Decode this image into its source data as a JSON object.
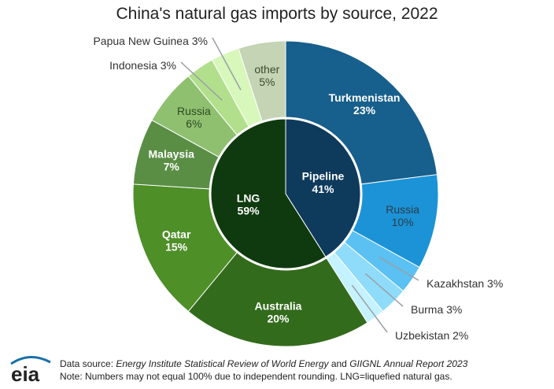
{
  "chart_data": {
    "type": "pie",
    "title": "China's natural gas imports by source, 2022",
    "inner": [
      {
        "label": "Pipeline",
        "value": 41,
        "display": "41%",
        "color": "#0e3a5c"
      },
      {
        "label": "LNG",
        "value": 59,
        "display": "59%",
        "color": "#0f3a0f"
      }
    ],
    "outer": [
      {
        "label": "Turkmenistan",
        "value": 23,
        "display": "23%",
        "color": "#175f8c",
        "group": "Pipeline"
      },
      {
        "label": "Russia",
        "value": 10,
        "display": "10%",
        "color": "#1c93d6",
        "group": "Pipeline"
      },
      {
        "label": "Kazakhstan",
        "value": 3,
        "display": "3%",
        "color": "#5bc0f2",
        "group": "Pipeline"
      },
      {
        "label": "Burma",
        "value": 3,
        "display": "3%",
        "color": "#8fdbfa",
        "group": "Pipeline"
      },
      {
        "label": "Uzbekistan",
        "value": 2,
        "display": "2%",
        "color": "#c4f2ff",
        "group": "Pipeline"
      },
      {
        "label": "Australia",
        "value": 20,
        "display": "20%",
        "color": "#336b1c",
        "group": "LNG"
      },
      {
        "label": "Qatar",
        "value": 15,
        "display": "15%",
        "color": "#4e8f28",
        "group": "LNG"
      },
      {
        "label": "Malaysia",
        "value": 7,
        "display": "7%",
        "color": "#5a8e45",
        "group": "LNG"
      },
      {
        "label": "Russia",
        "value": 6,
        "display": "6%",
        "color": "#8ec070",
        "group": "LNG"
      },
      {
        "label": "Indonesia",
        "value": 3,
        "display": "3%",
        "color": "#b2df8c",
        "group": "LNG"
      },
      {
        "label": "Papua New Guinea",
        "value": 3,
        "display": "3%",
        "color": "#d7f7bb",
        "group": "LNG"
      },
      {
        "label": "other",
        "value": 5,
        "display": "5%",
        "color": "#c4d4b4",
        "group": "LNG"
      }
    ]
  },
  "footer": {
    "logo_text": "eia",
    "source_prefix": "Data source: ",
    "source_1": "Energy Institute Statistical Review of World Energy",
    "source_and": " and ",
    "source_2": "GIIGNL Annual Report 2023",
    "note": "Note: Numbers may not equal 100% due to independent rounding. LNG=liquefied natural gas."
  }
}
